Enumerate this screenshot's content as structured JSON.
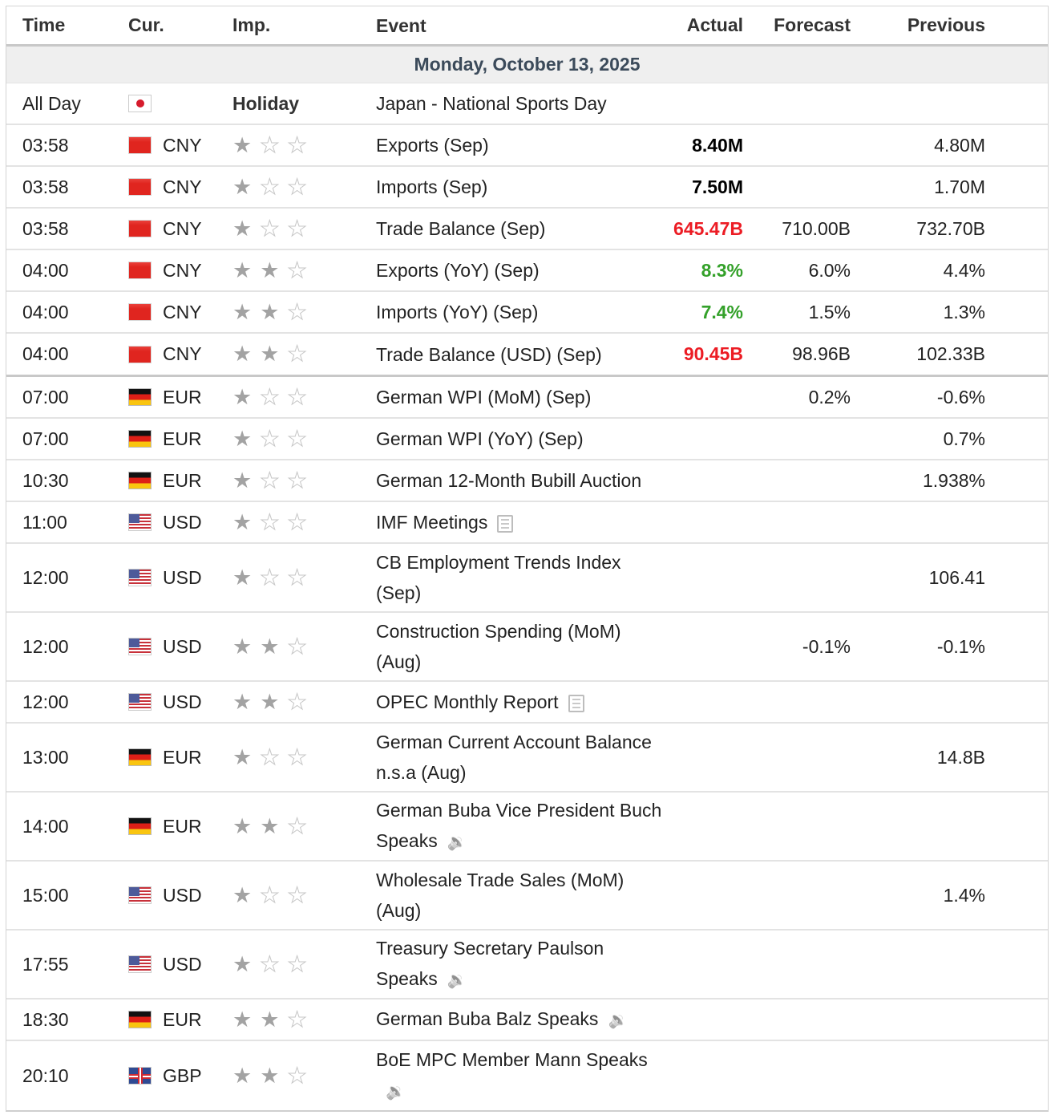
{
  "header": {
    "time": "Time",
    "currency": "Cur.",
    "importance": "Imp.",
    "event": "Event",
    "actual": "Actual",
    "forecast": "Forecast",
    "previous": "Previous"
  },
  "date_label": "Monday, October 13, 2025",
  "colors": {
    "negative": "#ec1c24",
    "positive": "#34a12a",
    "star_on": "#a3a3a3"
  },
  "rows": [
    {
      "time": "All Day",
      "flag": "jp",
      "currency": "",
      "holiday": "Holiday",
      "stars": 0,
      "event": "Japan - National Sports Day",
      "actual": "",
      "actual_color": "",
      "forecast": "",
      "previous": "",
      "icon": ""
    },
    {
      "time": "03:58",
      "flag": "cn",
      "currency": "CNY",
      "stars": 1,
      "event": "Exports (Sep)",
      "actual": "8.40M",
      "actual_color": "black",
      "forecast": "",
      "previous": "4.80M",
      "icon": ""
    },
    {
      "time": "03:58",
      "flag": "cn",
      "currency": "CNY",
      "stars": 1,
      "event": "Imports (Sep)",
      "actual": "7.50M",
      "actual_color": "black",
      "forecast": "",
      "previous": "1.70M",
      "icon": ""
    },
    {
      "time": "03:58",
      "flag": "cn",
      "currency": "CNY",
      "stars": 1,
      "event": "Trade Balance (Sep)",
      "actual": "645.47B",
      "actual_color": "red",
      "forecast": "710.00B",
      "previous": "732.70B",
      "icon": ""
    },
    {
      "time": "04:00",
      "flag": "cn",
      "currency": "CNY",
      "stars": 2,
      "event": "Exports (YoY) (Sep)",
      "actual": "8.3%",
      "actual_color": "green",
      "forecast": "6.0%",
      "previous": "4.4%",
      "icon": ""
    },
    {
      "time": "04:00",
      "flag": "cn",
      "currency": "CNY",
      "stars": 2,
      "event": "Imports (YoY) (Sep)",
      "actual": "7.4%",
      "actual_color": "green",
      "forecast": "1.5%",
      "previous": "1.3%",
      "icon": ""
    },
    {
      "time": "04:00",
      "flag": "cn",
      "currency": "CNY",
      "stars": 2,
      "event": "Trade Balance (USD) (Sep)",
      "actual": "90.45B",
      "actual_color": "red",
      "forecast": "98.96B",
      "previous": "102.33B",
      "icon": ""
    },
    {
      "time": "07:00",
      "flag": "de",
      "currency": "EUR",
      "stars": 1,
      "event": "German WPI (MoM) (Sep)",
      "actual": "",
      "actual_color": "",
      "forecast": "0.2%",
      "previous": "-0.6%",
      "icon": ""
    },
    {
      "time": "07:00",
      "flag": "de",
      "currency": "EUR",
      "stars": 1,
      "event": "German WPI (YoY) (Sep)",
      "actual": "",
      "actual_color": "",
      "forecast": "",
      "previous": "0.7%",
      "icon": ""
    },
    {
      "time": "10:30",
      "flag": "de",
      "currency": "EUR",
      "stars": 1,
      "event": "German 12-Month Bubill Auction",
      "actual": "",
      "actual_color": "",
      "forecast": "",
      "previous": "1.938%",
      "icon": ""
    },
    {
      "time": "11:00",
      "flag": "us",
      "currency": "USD",
      "stars": 1,
      "event": "IMF Meetings",
      "actual": "",
      "actual_color": "",
      "forecast": "",
      "previous": "",
      "icon": "report-icon"
    },
    {
      "time": "12:00",
      "flag": "us",
      "currency": "USD",
      "stars": 1,
      "event": "CB Employment Trends Index (Sep)",
      "actual": "",
      "actual_color": "",
      "forecast": "",
      "previous": "106.41",
      "icon": ""
    },
    {
      "time": "12:00",
      "flag": "us",
      "currency": "USD",
      "stars": 2,
      "event": "Construction Spending (MoM) (Aug)",
      "actual": "",
      "actual_color": "",
      "forecast": "-0.1%",
      "previous": "-0.1%",
      "icon": ""
    },
    {
      "time": "12:00",
      "flag": "us",
      "currency": "USD",
      "stars": 2,
      "event": "OPEC Monthly Report",
      "actual": "",
      "actual_color": "",
      "forecast": "",
      "previous": "",
      "icon": "report-icon"
    },
    {
      "time": "13:00",
      "flag": "de",
      "currency": "EUR",
      "stars": 1,
      "event": "German Current Account Balance n.s.a (Aug)",
      "actual": "",
      "actual_color": "",
      "forecast": "",
      "previous": "14.8B",
      "icon": ""
    },
    {
      "time": "14:00",
      "flag": "de",
      "currency": "EUR",
      "stars": 2,
      "event": "German Buba Vice President Buch Speaks",
      "actual": "",
      "actual_color": "",
      "forecast": "",
      "previous": "",
      "icon": "speaker-icon"
    },
    {
      "time": "15:00",
      "flag": "us",
      "currency": "USD",
      "stars": 1,
      "event": "Wholesale Trade Sales (MoM) (Aug)",
      "actual": "",
      "actual_color": "",
      "forecast": "",
      "previous": "1.4%",
      "icon": ""
    },
    {
      "time": "17:55",
      "flag": "us",
      "currency": "USD",
      "stars": 1,
      "event": "Treasury Secretary Paulson Speaks",
      "actual": "",
      "actual_color": "",
      "forecast": "",
      "previous": "",
      "icon": "speaker-icon"
    },
    {
      "time": "18:30",
      "flag": "de",
      "currency": "EUR",
      "stars": 2,
      "event": "German Buba Balz Speaks",
      "actual": "",
      "actual_color": "",
      "forecast": "",
      "previous": "",
      "icon": "speaker-icon"
    },
    {
      "time": "20:10",
      "flag": "gb",
      "currency": "GBP",
      "stars": 2,
      "event": "BoE MPC Member Mann Speaks",
      "actual": "",
      "actual_color": "",
      "forecast": "",
      "previous": "",
      "icon": "speaker-icon"
    }
  ]
}
